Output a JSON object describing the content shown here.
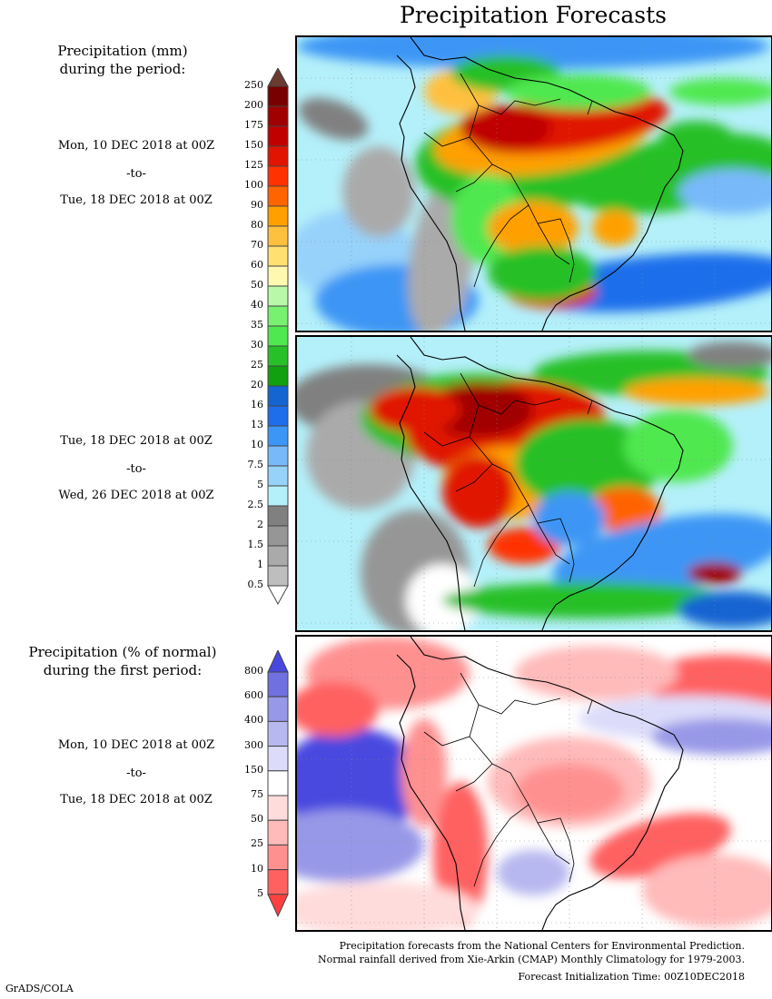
{
  "title": "Precipitation Forecasts",
  "sections": [
    {
      "heading_line1": "Precipitation (mm)",
      "heading_line2": "during the period:",
      "from": "Mon, 10 DEC 2018 at 00Z",
      "to": "-to-",
      "until": "Tue, 18 DEC 2018 at 00Z"
    },
    {
      "from": "Tue, 18 DEC 2018 at 00Z",
      "to": "-to-",
      "until": "Wed, 26 DEC 2018 at 00Z"
    },
    {
      "heading_line1": "Precipitation (% of normal)",
      "heading_line2": "during the first period:",
      "from": "Mon, 10 DEC 2018 at 00Z",
      "to": "-to-",
      "until": "Tue, 18 DEC 2018 at 00Z"
    }
  ],
  "precip_colorbar": {
    "labels": [
      "250",
      "200",
      "175",
      "150",
      "125",
      "100",
      "90",
      "80",
      "70",
      "60",
      "50",
      "40",
      "35",
      "30",
      "25",
      "20",
      "16",
      "13",
      "10",
      "7.5",
      "5",
      "2.5",
      "2",
      "1.5",
      "1",
      "0.5"
    ],
    "colors": [
      "#780000",
      "#a00000",
      "#c00000",
      "#e01400",
      "#ff3200",
      "#ff6400",
      "#ffa000",
      "#ffc040",
      "#ffe070",
      "#fff8b0",
      "#b8f8a8",
      "#78f070",
      "#50e850",
      "#28c028",
      "#10a010",
      "#1464d2",
      "#1e6eeb",
      "#3c96f5",
      "#78b9fa",
      "#96d2fa",
      "#b4f0fa",
      "#808080",
      "#969696",
      "#aaaaaa",
      "#bebebe"
    ],
    "over_color": "#6b3a30",
    "under_color": "#ffffff"
  },
  "percent_colorbar": {
    "labels": [
      "800",
      "600",
      "400",
      "300",
      "150",
      "75",
      "50",
      "25",
      "10",
      "5"
    ],
    "colors": [
      "#7070e0",
      "#9898e8",
      "#b8b8f0",
      "#dcdcfa",
      "#ffffff",
      "#ffdcdc",
      "#ffbaba",
      "#ff9090",
      "#ff6060"
    ],
    "over_color": "#4848e0",
    "under_color": "#ff4040"
  },
  "footer": {
    "line1": "Precipitation forecasts from the National Centers for Environmental Prediction.",
    "line2": "Normal rainfall derived from Xie-Arkin (CMAP) Monthly Climatology for 1979-2003.",
    "line3": "Forecast Initialization Time: 00Z10DEC2018"
  },
  "credit": "GrADS/COLA"
}
